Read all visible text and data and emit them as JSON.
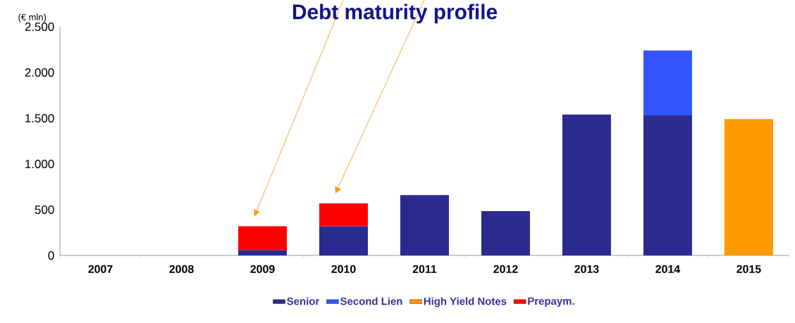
{
  "chart_data": {
    "type": "bar",
    "title": "Debt maturity profile",
    "ylabel": "(€ mln)",
    "stacked": true,
    "legend": "bottom",
    "grid": false,
    "categories": [
      "2007",
      "2008",
      "2009",
      "2010",
      "2011",
      "2012",
      "2013",
      "2014",
      "2015"
    ],
    "series": [
      {
        "name": "Senior",
        "color": "#2a2a8f",
        "values": [
          null,
          null,
          60,
          320,
          660,
          485,
          1540,
          1530,
          null
        ]
      },
      {
        "name": "Second Lien",
        "color": "#3355ff",
        "values": [
          null,
          null,
          null,
          null,
          null,
          null,
          null,
          710,
          null
        ]
      },
      {
        "name": "High Yield Notes",
        "color": "#ff9900",
        "values": [
          null,
          null,
          null,
          null,
          null,
          null,
          null,
          null,
          1490
        ]
      },
      {
        "name": "Prepaym.",
        "color": "#ff0000",
        "values": [
          null,
          null,
          260,
          250,
          null,
          null,
          null,
          null,
          null
        ]
      }
    ],
    "ylim": [
      0,
      2500
    ],
    "yticks": [
      0,
      500,
      {
        "value": 1000,
        "label": "1.000"
      },
      {
        "value": 1500,
        "label": "1.500"
      },
      {
        "value": 2000,
        "label": "2.000"
      },
      {
        "value": 2500,
        "label": "2.500"
      }
    ]
  }
}
